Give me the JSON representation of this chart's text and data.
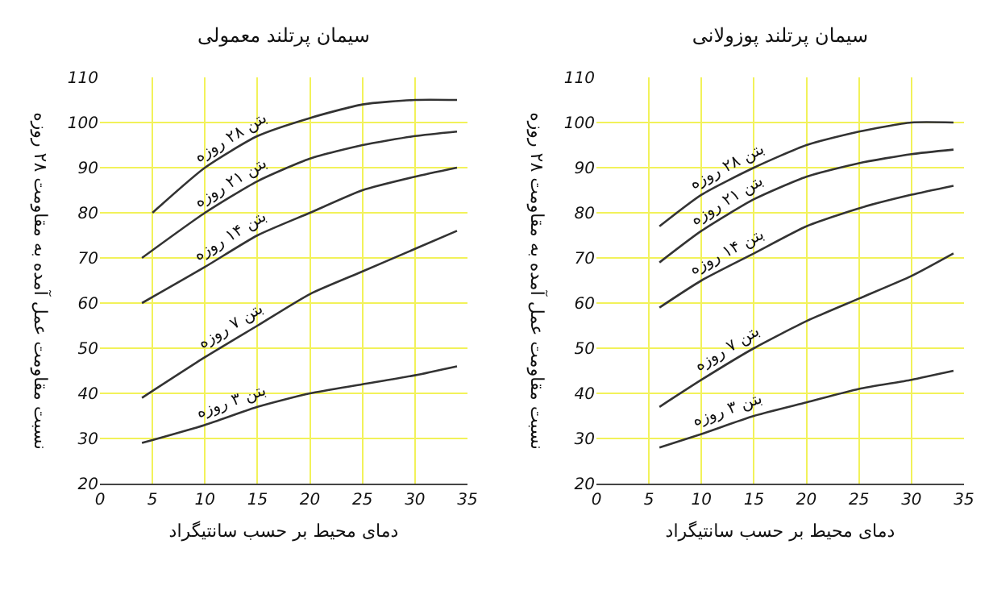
{
  "chart_data": [
    {
      "type": "line",
      "title": "سیمان پرتلند معمولی",
      "xlabel": "دمای محیط بر حسب سانتیگراد",
      "ylabel": "نسبت مقاومت عمل آمده به مقاومت ۲۸ روزه",
      "x": [
        4,
        10,
        15,
        20,
        25,
        30,
        34
      ],
      "xlim": [
        0,
        35
      ],
      "xticks": [
        0,
        5,
        10,
        15,
        20,
        25,
        30,
        35
      ],
      "ylim": [
        20,
        110
      ],
      "yticks": [
        20,
        30,
        40,
        50,
        60,
        70,
        80,
        90,
        100,
        110
      ],
      "grid": true,
      "series": [
        {
          "name": "بتن ۲۸ روزه",
          "color": "#333333",
          "x": [
            5,
            10,
            15,
            20,
            25,
            30,
            34
          ],
          "values": [
            80,
            90,
            97,
            101,
            104,
            105,
            105
          ]
        },
        {
          "name": "بتن ۲۱ روزه",
          "color": "#333333",
          "values": [
            70,
            80,
            87,
            92,
            95,
            97,
            98
          ]
        },
        {
          "name": "بتن ۱۴ روزه",
          "color": "#333333",
          "values": [
            60,
            68,
            75,
            80,
            85,
            88,
            90
          ]
        },
        {
          "name": "بتن ۷ روزه",
          "color": "#333333",
          "values": [
            39,
            48,
            55,
            62,
            67,
            72,
            76
          ]
        },
        {
          "name": "بتن ۳ روزه",
          "color": "#333333",
          "values": [
            29,
            33,
            37,
            40,
            42,
            44,
            46
          ]
        }
      ]
    },
    {
      "type": "line",
      "title": "سیمان پرتلند پوزولانی",
      "xlabel": "دمای محیط بر حسب سانتیگراد",
      "ylabel": "نسبت مقاومت عمل آمده به مقاومت ۲۸ روزه",
      "x": [
        6,
        10,
        15,
        20,
        25,
        30,
        34
      ],
      "xlim": [
        0,
        35
      ],
      "xticks": [
        0,
        5,
        10,
        15,
        20,
        25,
        30,
        35
      ],
      "ylim": [
        20,
        110
      ],
      "yticks": [
        20,
        30,
        40,
        50,
        60,
        70,
        80,
        90,
        100,
        110
      ],
      "grid": true,
      "series": [
        {
          "name": "بتن ۲۸ روزه",
          "color": "#333333",
          "values": [
            77,
            84,
            90,
            95,
            98,
            100,
            100
          ]
        },
        {
          "name": "بتن ۲۱ روزه",
          "color": "#333333",
          "values": [
            69,
            76,
            83,
            88,
            91,
            93,
            94
          ]
        },
        {
          "name": "بتن ۱۴ روزه",
          "color": "#333333",
          "values": [
            59,
            65,
            71,
            77,
            81,
            84,
            86
          ]
        },
        {
          "name": "بتن ۷ روزه",
          "color": "#333333",
          "values": [
            37,
            43,
            50,
            56,
            61,
            66,
            71
          ]
        },
        {
          "name": "بتن ۳ روزه",
          "color": "#333333",
          "values": [
            28,
            31,
            35,
            38,
            41,
            43,
            45
          ]
        }
      ]
    }
  ]
}
